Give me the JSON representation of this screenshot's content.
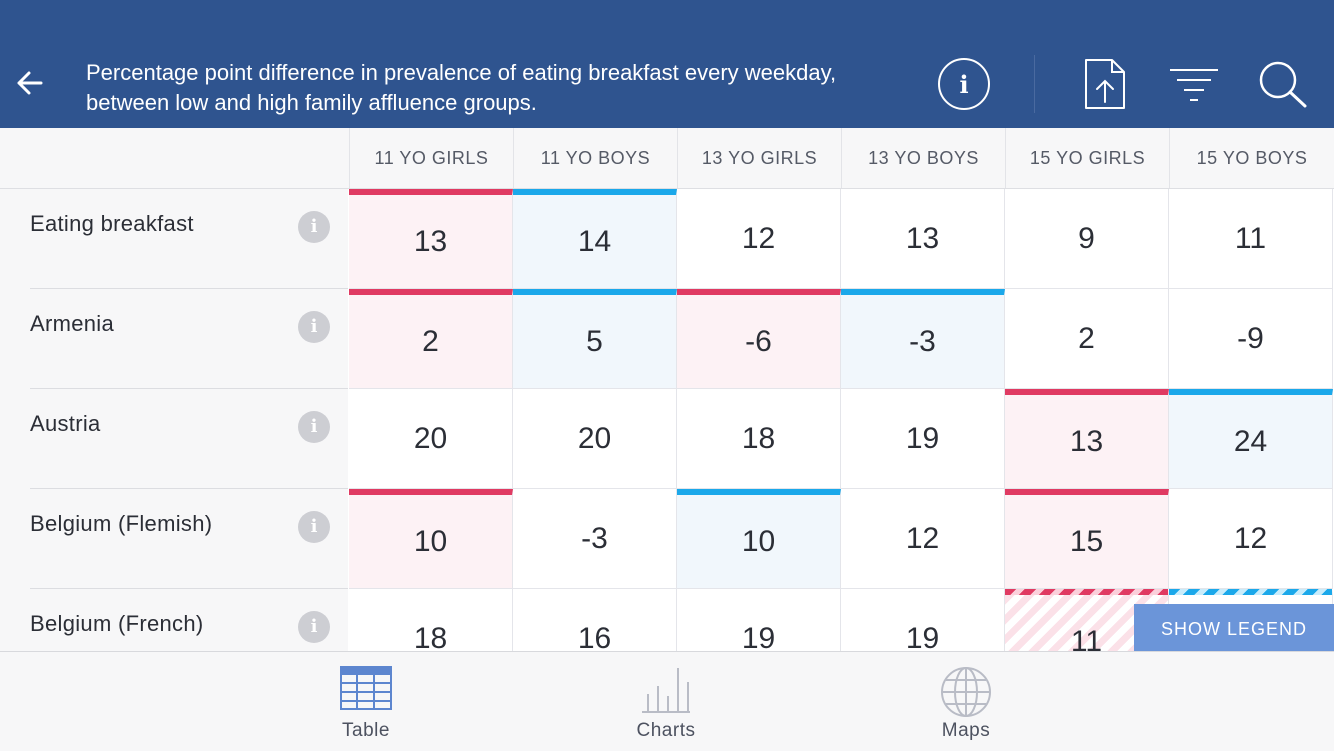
{
  "header": {
    "title": "Percentage point difference in prevalence of eating breakfast every weekday, between low and high family affluence groups."
  },
  "icons": {
    "back": "arrow-left-icon",
    "info": "info-icon",
    "share": "share-upload-icon",
    "filter": "filter-icon",
    "search": "search-icon"
  },
  "columns": [
    "11 YO GIRLS",
    "11 YO BOYS",
    "13 YO GIRLS",
    "13 YO BOYS",
    "15 YO GIRLS",
    "15 YO BOYS"
  ],
  "rows": [
    {
      "label": "Eating breakfast",
      "values": [
        "13",
        "14",
        "12",
        "13",
        "9",
        "11"
      ]
    },
    {
      "label": "Armenia",
      "values": [
        "2",
        "5",
        "-6",
        "-3",
        "2",
        "-9"
      ]
    },
    {
      "label": "Austria",
      "values": [
        "20",
        "20",
        "18",
        "19",
        "13",
        "24"
      ]
    },
    {
      "label": "Belgium (Flemish)",
      "values": [
        "10",
        "-3",
        "10",
        "12",
        "15",
        "12"
      ]
    },
    {
      "label": "Belgium (French)",
      "values": [
        "18",
        "16",
        "19",
        "19",
        "11",
        ""
      ]
    }
  ],
  "highlights": [
    [
      "pink",
      "blue",
      "",
      "",
      "",
      ""
    ],
    [
      "pink",
      "blue",
      "pink",
      "blue",
      "",
      ""
    ],
    [
      "",
      "",
      "",
      "",
      "pink",
      "blue"
    ],
    [
      "pink",
      "",
      "blue",
      "",
      "pink",
      ""
    ],
    [
      "",
      "",
      "",
      "",
      "pink-h",
      "blue-h"
    ]
  ],
  "colors": {
    "header_bg": "#2f548f",
    "girls_accent": "#e03a62",
    "boys_accent": "#1ba8ea",
    "legend_button": "#6b95d9"
  },
  "legend_button": "SHOW LEGEND",
  "tabs": [
    {
      "label": "Table",
      "icon": "table-icon",
      "active": true
    },
    {
      "label": "Charts",
      "icon": "bar-chart-icon",
      "active": false
    },
    {
      "label": "Maps",
      "icon": "globe-icon",
      "active": false
    }
  ]
}
